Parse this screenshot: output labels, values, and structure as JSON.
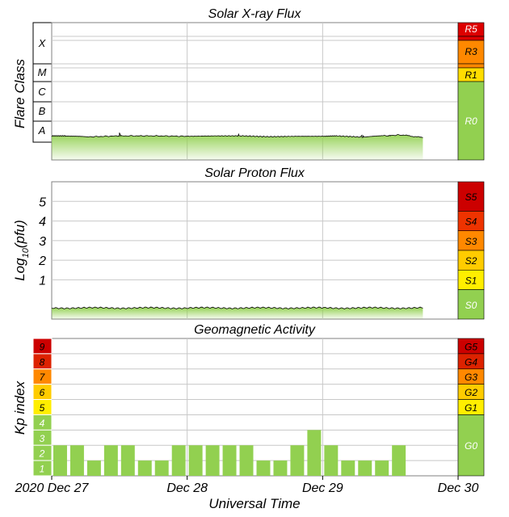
{
  "chart_data": [
    {
      "type": "area",
      "title": "Solar X-ray Flux",
      "ylabel": "Flare Class",
      "y_scale": "log",
      "flare_classes": [
        "X",
        "M",
        "C",
        "B",
        "A"
      ],
      "x_range_days": [
        0,
        3
      ],
      "series": [
        {
          "x_days": [
            0,
            0.1,
            0.25,
            0.5,
            0.75,
            1.0,
            1.2,
            1.4,
            1.6,
            1.8,
            2.0,
            2.1,
            2.3,
            2.45,
            2.58,
            2.74
          ],
          "class_level": [
            1.3,
            1.3,
            1.25,
            1.3,
            1.3,
            1.28,
            1.3,
            1.3,
            1.26,
            1.28,
            1.28,
            1.3,
            1.24,
            1.3,
            1.35,
            1.22
          ]
        }
      ],
      "peaks": [
        {
          "x_day": 0.5,
          "class_level": 1.45
        },
        {
          "x_day": 1.38,
          "class_level": 1.38
        },
        {
          "x_day": 2.29,
          "class_level": 1.33
        },
        {
          "x_day": 2.49,
          "class_level": 1.3
        }
      ],
      "scale_levels": [
        {
          "label": "R5",
          "color": "#dd0000"
        },
        {
          "label": "R3",
          "color": "#ff8800"
        },
        {
          "label": "R1",
          "color": "#ffdd00"
        },
        {
          "label": "R0",
          "color": "#92d050"
        }
      ]
    },
    {
      "type": "area",
      "title": "Solar Proton Flux",
      "ylabel": "Log",
      "ylabel_sub": "10",
      "ylabel_tail": "(pfu)",
      "yticks": [
        "5",
        "4",
        "3",
        "2",
        "1"
      ],
      "ylim": [
        -1,
        6
      ],
      "x_range_days": [
        0,
        3
      ],
      "series": [
        {
          "x_days": [
            0,
            2.74
          ],
          "log10_pfu": [
            -0.43,
            -0.43
          ]
        }
      ],
      "scale_levels": [
        {
          "label": "S5",
          "color": "#cc0000"
        },
        {
          "label": "S4",
          "color": "#ee3300"
        },
        {
          "label": "S3",
          "color": "#ff8800"
        },
        {
          "label": "S2",
          "color": "#ffcc00"
        },
        {
          "label": "S1",
          "color": "#ffee00"
        },
        {
          "label": "S0",
          "color": "#92d050"
        }
      ]
    },
    {
      "type": "bar",
      "title": "Geomagnetic Activity",
      "ylabel": "Kp index",
      "ylim": [
        0,
        9
      ],
      "kp_levels": [
        {
          "label": "9",
          "color": "#cc0000"
        },
        {
          "label": "8",
          "color": "#dd2200"
        },
        {
          "label": "7",
          "color": "#ff8800"
        },
        {
          "label": "6",
          "color": "#ffcc00"
        },
        {
          "label": "5",
          "color": "#ffee00"
        },
        {
          "label": "4",
          "color": "#92d050"
        },
        {
          "label": "3",
          "color": "#92d050"
        },
        {
          "label": "2",
          "color": "#92d050"
        },
        {
          "label": "1",
          "color": "#92d050"
        }
      ],
      "values": [
        2,
        2,
        1,
        2,
        2,
        1,
        1,
        2,
        2,
        2,
        2,
        2,
        1,
        1,
        2,
        3,
        2,
        1,
        1,
        1,
        2
      ],
      "bar_color": "#92d050",
      "scale_levels": [
        {
          "label": "G5",
          "color": "#cc0000"
        },
        {
          "label": "G4",
          "color": "#dd2200"
        },
        {
          "label": "G3",
          "color": "#ff8800"
        },
        {
          "label": "G2",
          "color": "#ffcc00"
        },
        {
          "label": "G1",
          "color": "#ffee00"
        },
        {
          "label": "G0",
          "color": "#92d050"
        }
      ]
    }
  ],
  "x_axis": {
    "ticks": [
      "2020 Dec 27",
      "Dec 28",
      "Dec 29",
      "Dec 30"
    ],
    "title": "Universal Time"
  },
  "colors": {
    "data_green": "#92d050",
    "grid": "#c8c8c8"
  }
}
